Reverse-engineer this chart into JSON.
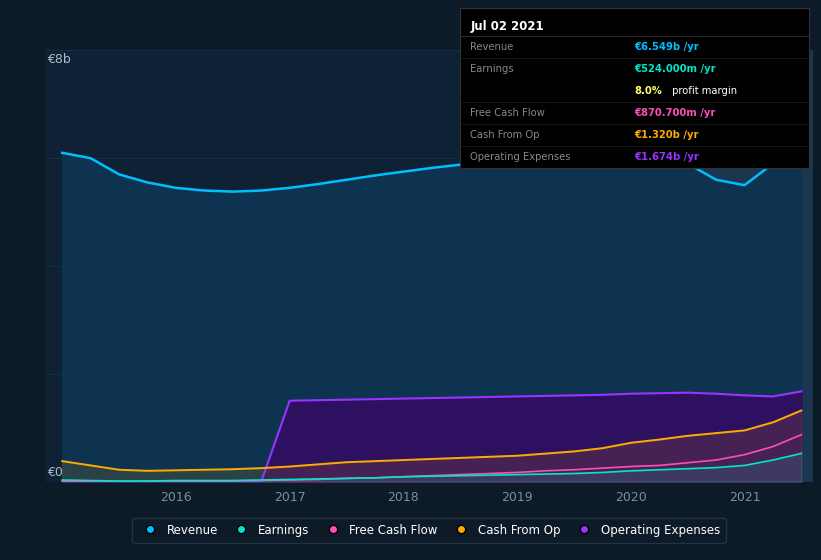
{
  "bg_color": "#0d1a27",
  "plot_bg_color": "#0e2135",
  "grid_color": "#1a3248",
  "x_years": [
    2015.0,
    2015.25,
    2015.5,
    2015.75,
    2016.0,
    2016.25,
    2016.5,
    2016.75,
    2017.0,
    2017.25,
    2017.5,
    2017.75,
    2018.0,
    2018.25,
    2018.5,
    2018.75,
    2019.0,
    2019.25,
    2019.5,
    2019.75,
    2020.0,
    2020.25,
    2020.5,
    2020.75,
    2021.0,
    2021.25,
    2021.5
  ],
  "revenue": [
    6.1,
    6.0,
    5.7,
    5.55,
    5.45,
    5.4,
    5.38,
    5.4,
    5.45,
    5.52,
    5.6,
    5.68,
    5.75,
    5.82,
    5.88,
    5.93,
    5.98,
    6.05,
    6.12,
    6.25,
    6.5,
    6.3,
    5.9,
    5.6,
    5.5,
    5.9,
    6.549
  ],
  "earnings": [
    0.03,
    0.02,
    0.01,
    0.01,
    0.02,
    0.02,
    0.02,
    0.03,
    0.04,
    0.05,
    0.06,
    0.07,
    0.09,
    0.1,
    0.11,
    0.12,
    0.13,
    0.14,
    0.15,
    0.17,
    0.2,
    0.22,
    0.24,
    0.26,
    0.3,
    0.4,
    0.524
  ],
  "free_cash_flow": [
    0.01,
    0.005,
    0.0,
    0.005,
    0.01,
    0.01,
    0.01,
    0.02,
    0.03,
    0.04,
    0.06,
    0.07,
    0.09,
    0.11,
    0.13,
    0.15,
    0.17,
    0.2,
    0.22,
    0.25,
    0.28,
    0.3,
    0.35,
    0.4,
    0.5,
    0.65,
    0.8707
  ],
  "cash_from_op": [
    0.38,
    0.3,
    0.22,
    0.2,
    0.21,
    0.22,
    0.23,
    0.25,
    0.28,
    0.32,
    0.36,
    0.38,
    0.4,
    0.42,
    0.44,
    0.46,
    0.48,
    0.52,
    0.56,
    0.62,
    0.72,
    0.78,
    0.85,
    0.9,
    0.95,
    1.1,
    1.32
  ],
  "operating_expenses": [
    0.0,
    0.0,
    0.0,
    0.0,
    0.0,
    0.0,
    0.0,
    0.0,
    1.5,
    1.51,
    1.52,
    1.53,
    1.54,
    1.55,
    1.56,
    1.57,
    1.58,
    1.59,
    1.6,
    1.61,
    1.63,
    1.64,
    1.65,
    1.63,
    1.6,
    1.58,
    1.674
  ],
  "revenue_color": "#00bfff",
  "revenue_fill": "#0d3350",
  "earnings_color": "#00e5cc",
  "free_cash_flow_color": "#ff4db8",
  "cash_from_op_color": "#ffaa00",
  "op_expenses_color": "#9933ff",
  "op_expenses_fill": "#2d1060",
  "highlight_x_start": 2020.6,
  "highlight_x_end": 2021.6,
  "ylim": [
    0,
    8
  ],
  "xlim_left": 2014.85,
  "xlim_right": 2021.6,
  "xtick_positions": [
    2015.0,
    2016.0,
    2017.0,
    2018.0,
    2019.0,
    2020.0,
    2021.0
  ],
  "xtick_labels": [
    "",
    "2016",
    "2017",
    "2018",
    "2019",
    "2020",
    "2021"
  ],
  "legend_items": [
    {
      "label": "Revenue",
      "color": "#00bfff"
    },
    {
      "label": "Earnings",
      "color": "#00e5cc"
    },
    {
      "label": "Free Cash Flow",
      "color": "#ff4db8"
    },
    {
      "label": "Cash From Op",
      "color": "#ffaa00"
    },
    {
      "label": "Operating Expenses",
      "color": "#9933ff"
    }
  ],
  "tooltip": {
    "title": "Jul 02 2021",
    "rows": [
      {
        "label": "Revenue",
        "value": "€6.549b /yr",
        "value_color": "#00bfff",
        "has_sub": false
      },
      {
        "label": "Earnings",
        "value": "€524.000m /yr",
        "value_color": "#00e5cc",
        "has_sub": true,
        "sub": "8.0% profit margin",
        "sub_pct_color": "#ffff66"
      },
      {
        "label": "Free Cash Flow",
        "value": "€870.700m /yr",
        "value_color": "#ff4db8",
        "has_sub": false
      },
      {
        "label": "Cash From Op",
        "value": "€1.320b /yr",
        "value_color": "#ffaa00",
        "has_sub": false
      },
      {
        "label": "Operating Expenses",
        "value": "€1.674b /yr",
        "value_color": "#9933ff",
        "has_sub": false
      }
    ]
  }
}
